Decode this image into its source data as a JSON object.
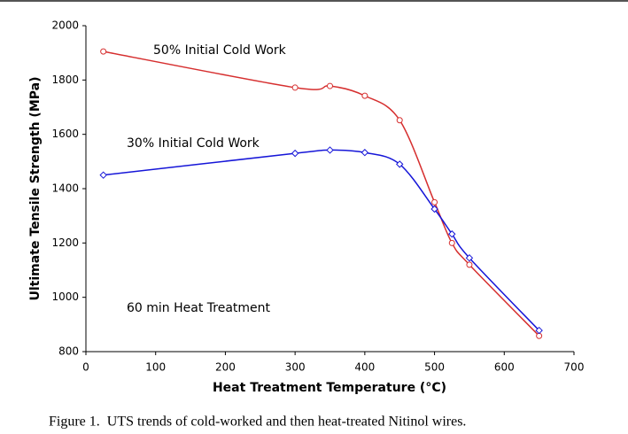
{
  "chart_data": {
    "type": "line",
    "x_label": "Heat Treatment Temperature (°C)",
    "y_label": "Ultimate Tensile Strength (MPa)",
    "caption": "Figure 1.  UTS trends of cold-worked and then heat-treated Nitinol wires.",
    "annotation": "60 min Heat Treatment",
    "series": [
      {
        "name": "50% Initial Cold Work",
        "color": "#d62f2f",
        "marker": "circle",
        "x": [
          25,
          300,
          350,
          400,
          450,
          500,
          525,
          550,
          650
        ],
        "values": [
          1905,
          1772,
          1778,
          1742,
          1652,
          1350,
          1200,
          1120,
          858
        ]
      },
      {
        "name": "30% Initial Cold Work",
        "color": "#1616d8",
        "marker": "diamond",
        "x": [
          25,
          300,
          350,
          400,
          450,
          500,
          525,
          550,
          650
        ],
        "values": [
          1450,
          1530,
          1542,
          1533,
          1490,
          1325,
          1233,
          1145,
          878
        ]
      }
    ],
    "xlim": [
      0,
      700
    ],
    "xticks": [
      0,
      100,
      200,
      300,
      400,
      500,
      600,
      700
    ],
    "ylim": [
      800,
      2000
    ],
    "yticks": [
      800,
      1000,
      1200,
      1400,
      1600,
      1800,
      2000
    ],
    "grid": false
  }
}
